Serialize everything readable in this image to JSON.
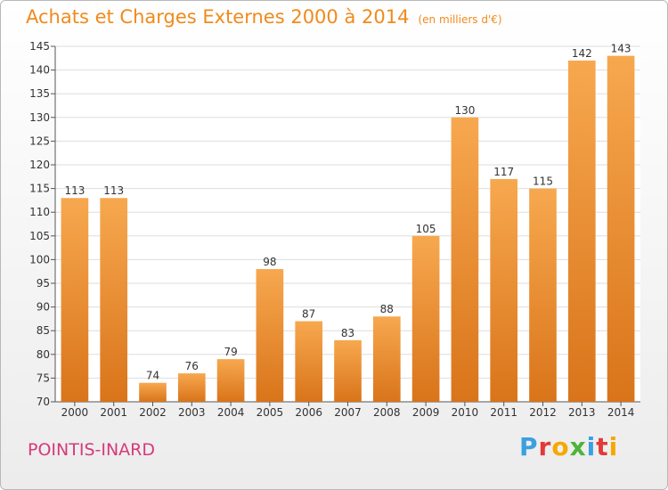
{
  "title": "Achats et Charges Externes 2000 à 2014",
  "subtitle": "(en milliers d'€)",
  "commune": "POINTIS-INARD",
  "logo": {
    "letters": [
      "P",
      "r",
      "o",
      "x",
      "i",
      "t",
      "i"
    ],
    "colors": [
      "#3aa0e0",
      "#e23a3a",
      "#f7a800",
      "#4fb43a",
      "#3aa0e0",
      "#e23a3a",
      "#f7a800"
    ]
  },
  "colors": {
    "bar_light": "#f7a84f",
    "bar_dark": "#d9741a",
    "title": "#f08a1c",
    "commune": "#d63a7a",
    "plot_background": "#ffffff",
    "grid": "#dddddd"
  },
  "chart_data": {
    "type": "bar",
    "title": "Achats et Charges Externes 2000 à 2014",
    "subtitle": "(en milliers d'€)",
    "categories": [
      "2000",
      "2001",
      "2002",
      "2003",
      "2004",
      "2005",
      "2006",
      "2007",
      "2008",
      "2009",
      "2010",
      "2011",
      "2012",
      "2013",
      "2014"
    ],
    "values": [
      113,
      113,
      74,
      76,
      79,
      98,
      87,
      83,
      88,
      105,
      130,
      117,
      115,
      142,
      143
    ],
    "ylim": [
      70,
      145
    ],
    "yticks": [
      70,
      75,
      80,
      85,
      90,
      95,
      100,
      105,
      110,
      115,
      120,
      125,
      130,
      135,
      140,
      145
    ],
    "grid": true,
    "legend": "none"
  }
}
